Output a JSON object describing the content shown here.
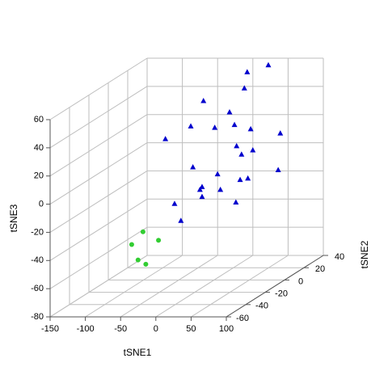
{
  "chart_data": {
    "type": "scatter3d",
    "x_label": "tSNE1",
    "y_label": "tSNE2",
    "z_label": "tSNE3",
    "xlim": [
      -150,
      100
    ],
    "ylim": [
      -60,
      40
    ],
    "zlim": [
      -80,
      60
    ],
    "xticks": [
      -150,
      -100,
      -50,
      0,
      50,
      100
    ],
    "yticks": [
      -60,
      -40,
      -20,
      0,
      20,
      40
    ],
    "zticks": [
      -80,
      -60,
      -40,
      -20,
      0,
      20,
      40,
      60
    ],
    "grid": true,
    "series": [
      {
        "color": "#32cd32",
        "marker": "circle",
        "x": [
          -32,
          -48,
          -10,
          -39,
          -28
        ],
        "y": [
          -50,
          -50,
          -50,
          -50,
          -50
        ],
        "z": [
          -24,
          -33,
          -30,
          -44,
          -47
        ]
      },
      {
        "color": "#0000cd",
        "marker": "triangle",
        "x": [
          22,
          -8,
          43,
          -15,
          22,
          -33,
          1,
          29,
          52,
          94,
          -69,
          32,
          55,
          39,
          -30,
          91,
          5,
          48,
          37,
          -17,
          -20,
          9,
          -17,
          31,
          -56,
          -47
        ],
        "y": [
          40,
          40,
          0,
          0,
          0,
          0,
          0,
          0,
          0,
          0,
          0,
          0,
          0,
          0,
          0,
          0,
          0,
          0,
          0,
          0,
          0,
          0,
          0,
          0,
          0,
          0
        ],
        "z": [
          55,
          50,
          56,
          47,
          39,
          29,
          28,
          30,
          27,
          24,
          20,
          15,
          12,
          9,
          0,
          -2,
          -5,
          -8,
          -9,
          -14,
          -16,
          -16,
          -21,
          -25,
          -26,
          -38
        ]
      }
    ]
  }
}
